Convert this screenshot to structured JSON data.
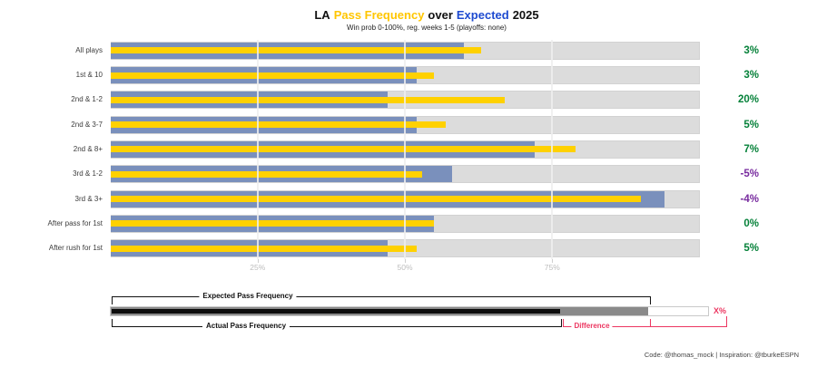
{
  "title": {
    "prefix": "LA",
    "highlight1": "Pass Frequency",
    "middle": "over",
    "highlight2": "Expected",
    "suffix": "2025"
  },
  "subtitle": "Win prob 0-100%, reg. weeks 1-5 (playoffs: none)",
  "footer": "Code: @thomas_mock | Inspiration: @tburkeESPN",
  "colors": {
    "title_gold": "#ffc600",
    "title_blue": "#1d4ad0",
    "bar_expected_blue": "#7a90bc",
    "bar_actual_yellow": "#ffd100",
    "track_gray": "#dcdcdc",
    "positive_green": "#058139",
    "negative_purple": "#772a9e",
    "legend_red": "#ec3761",
    "legend_gray": "#8a8a8a",
    "legend_black": "#0c0c0c"
  },
  "chart_data": {
    "type": "bar",
    "orientation": "horizontal",
    "title": "LA Pass Frequency over Expected 2025",
    "subtitle": "Win prob 0-100%, reg. weeks 1-5 (playoffs: none)",
    "categories": [
      "All plays",
      "1st & 10",
      "2nd & 1-2",
      "2nd & 3-7",
      "2nd & 8+",
      "3rd & 1-2",
      "3rd & 3+",
      "After pass for 1st",
      "After rush for 1st"
    ],
    "series": [
      {
        "name": "Expected Pass Frequency",
        "values": [
          60,
          52,
          47,
          52,
          72,
          58,
          94,
          55,
          47
        ]
      },
      {
        "name": "Actual Pass Frequency",
        "values": [
          63,
          55,
          67,
          57,
          79,
          53,
          90,
          55,
          52
        ]
      }
    ],
    "diff_values": [
      3,
      3,
      20,
      5,
      7,
      -5,
      -4,
      0,
      5
    ],
    "diff_labels": [
      "3%",
      "3%",
      "20%",
      "5%",
      "7%",
      "-5%",
      "-4%",
      "0%",
      "5%"
    ],
    "x_ticks": [
      "25%",
      "50%",
      "75%"
    ],
    "x_tick_values": [
      25,
      50,
      75
    ],
    "xlim": [
      0,
      100
    ],
    "grid": true,
    "legend_position": "bottom"
  },
  "legend": {
    "expected_label": "Expected Pass Frequency",
    "actual_label": "Actual Pass Frequency",
    "difference_label": "Difference",
    "x_label": "X%",
    "actual_pct": 75,
    "expected_pct": 90
  }
}
